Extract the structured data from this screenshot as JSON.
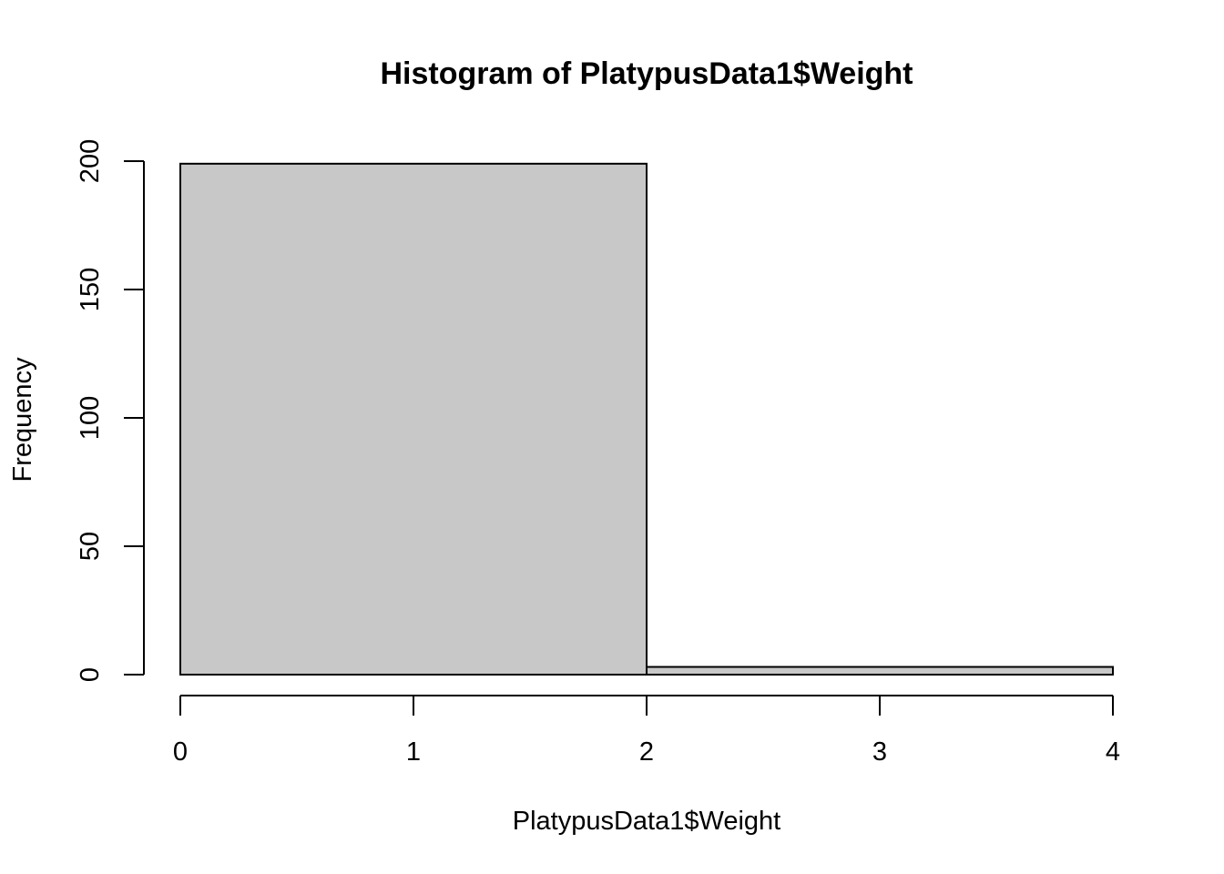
{
  "chart_data": {
    "type": "bar",
    "title": "Histogram of PlatypusData1$Weight",
    "xlabel": "PlatypusData1$Weight",
    "ylabel": "Frequency",
    "bins": [
      {
        "start": 0,
        "end": 2,
        "count": 199
      },
      {
        "start": 2,
        "end": 4,
        "count": 3
      }
    ],
    "xlim": [
      0,
      4
    ],
    "ylim": [
      0,
      200
    ],
    "x_ticks": [
      "0",
      "1",
      "2",
      "3",
      "4"
    ],
    "y_ticks": [
      "0",
      "50",
      "100",
      "150",
      "200"
    ],
    "grid": false,
    "bar_color": "#c8c8c8",
    "edge_color": "#000000"
  }
}
